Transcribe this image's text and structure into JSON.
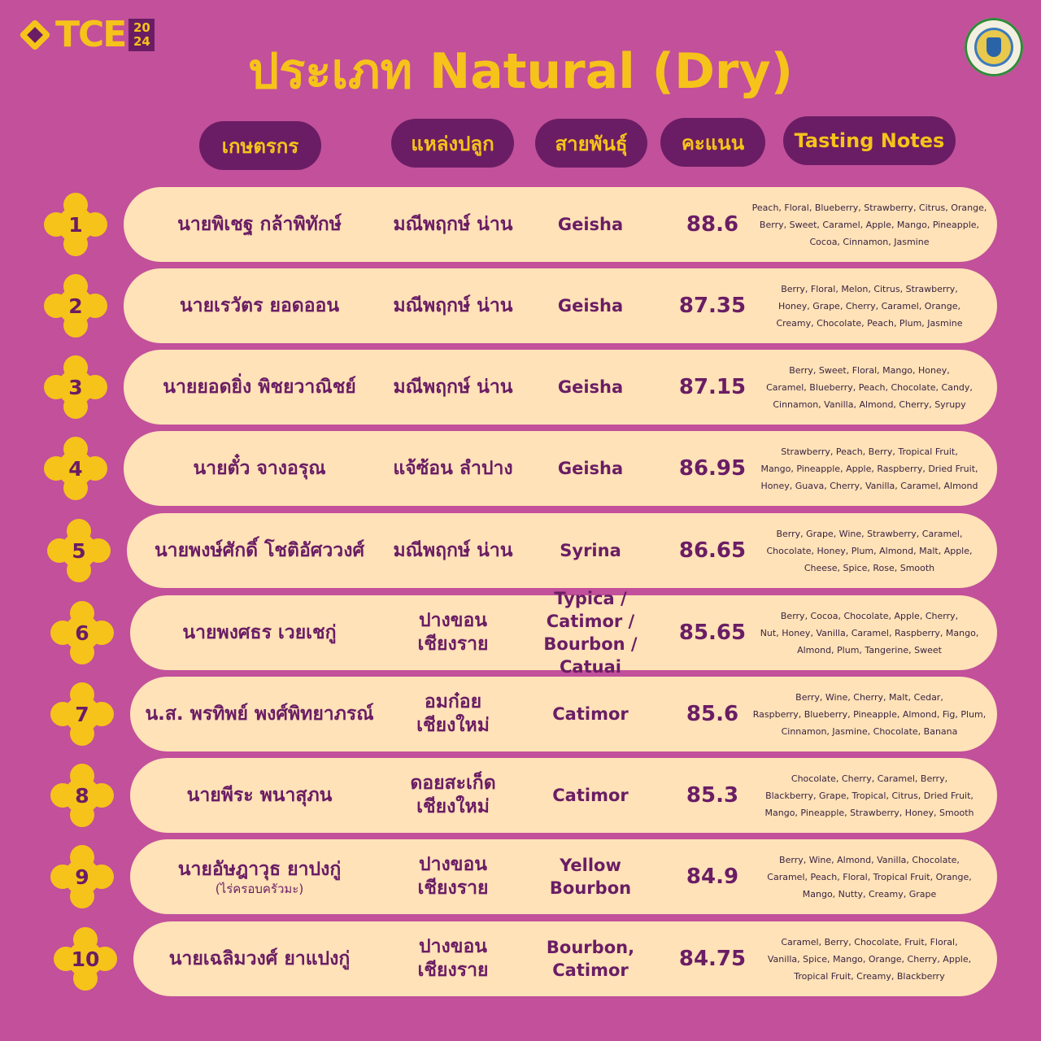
{
  "brand": {
    "logo_text": "TCE",
    "year_top": "20",
    "year_bottom": "24"
  },
  "title": "ประเภท Natural (Dry)",
  "headers": {
    "farmer": "เกษตรกร",
    "origin": "แหล่งปลูก",
    "variety": "สายพันธุ์",
    "score": "คะแนน",
    "notes": "Tasting Notes"
  },
  "colors": {
    "background": "#c2509a",
    "accent": "#f6c31a",
    "header_bg": "#6a1d64",
    "row_bg": "#ffe2b8",
    "text": "#6a1d64"
  },
  "rows": [
    {
      "rank": "1",
      "farmer": "นายพิเชฐ กล้าพิทักษ์",
      "farmer_sub": "",
      "origin_1": "มณีพฤกษ์ น่าน",
      "origin_2": "",
      "variety_1": "Geisha",
      "variety_2": "",
      "score": "88.6",
      "notes_1": "Peach, Floral, Blueberry, Strawberry, Citrus, Orange,",
      "notes_2": "Berry, Sweet, Caramel, Apple, Mango, Pineapple,",
      "notes_3": "Cocoa, Cinnamon, Jasmine"
    },
    {
      "rank": "2",
      "farmer": "นายเรวัตร ยอดออน",
      "farmer_sub": "",
      "origin_1": "มณีพฤกษ์ น่าน",
      "origin_2": "",
      "variety_1": "Geisha",
      "variety_2": "",
      "score": "87.35",
      "notes_1": "Berry, Floral, Melon, Citrus, Strawberry,",
      "notes_2": "Honey, Grape, Cherry, Caramel, Orange,",
      "notes_3": "Creamy, Chocolate, Peach, Plum, Jasmine"
    },
    {
      "rank": "3",
      "farmer": "นายยอดยิ่ง พิชยวาณิชย์",
      "farmer_sub": "",
      "origin_1": "มณีพฤกษ์ น่าน",
      "origin_2": "",
      "variety_1": "Geisha",
      "variety_2": "",
      "score": "87.15",
      "notes_1": "Berry, Sweet, Floral, Mango, Honey,",
      "notes_2": "Caramel, Blueberry, Peach, Chocolate, Candy,",
      "notes_3": "Cinnamon, Vanilla, Almond, Cherry, Syrupy"
    },
    {
      "rank": "4",
      "farmer": "นายตั๋ว จางอรุณ",
      "farmer_sub": "",
      "origin_1": "แจ้ซ้อน ลำปาง",
      "origin_2": "",
      "variety_1": "Geisha",
      "variety_2": "",
      "score": "86.95",
      "notes_1": "Strawberry, Peach, Berry, Tropical Fruit,",
      "notes_2": "Mango, Pineapple, Apple, Raspberry, Dried Fruit,",
      "notes_3": "Honey, Guava, Cherry, Vanilla, Caramel, Almond"
    },
    {
      "rank": "5",
      "farmer": "นายพงษ์ศักดิ์ โชติอัศววงศ์",
      "farmer_sub": "",
      "origin_1": "มณีพฤกษ์ น่าน",
      "origin_2": "",
      "variety_1": "Syrina",
      "variety_2": "",
      "score": "86.65",
      "notes_1": "Berry, Grape, Wine, Strawberry, Caramel,",
      "notes_2": "Chocolate, Honey, Plum, Almond, Malt, Apple,",
      "notes_3": "Cheese, Spice, Rose, Smooth"
    },
    {
      "rank": "6",
      "farmer": "นายพงศธร เวยเชกู่",
      "farmer_sub": "",
      "origin_1": "ปางขอน",
      "origin_2": "เชียงราย",
      "variety_1": "Typica / Catimor /",
      "variety_2": "Bourbon / Catuai",
      "score": "85.65",
      "notes_1": "Berry, Cocoa, Chocolate, Apple, Cherry,",
      "notes_2": "Nut, Honey, Vanilla, Caramel, Raspberry, Mango,",
      "notes_3": "Almond, Plum, Tangerine, Sweet"
    },
    {
      "rank": "7",
      "farmer": "น.ส. พรทิพย์ พงศ์พิทยาภรณ์",
      "farmer_sub": "",
      "origin_1": "อมก๋อย",
      "origin_2": "เชียงใหม่",
      "variety_1": "Catimor",
      "variety_2": "",
      "score": "85.6",
      "notes_1": "Berry, Wine, Cherry, Malt, Cedar,",
      "notes_2": "Raspberry, Blueberry, Pineapple, Almond, Fig, Plum,",
      "notes_3": "Cinnamon, Jasmine, Chocolate, Banana"
    },
    {
      "rank": "8",
      "farmer": "นายพีระ พนาสุภน",
      "farmer_sub": "",
      "origin_1": "ดอยสะเก็ด",
      "origin_2": "เชียงใหม่",
      "variety_1": "Catimor",
      "variety_2": "",
      "score": "85.3",
      "notes_1": "Chocolate, Cherry, Caramel, Berry,",
      "notes_2": "Blackberry, Grape, Tropical, Citrus, Dried Fruit,",
      "notes_3": "Mango, Pineapple, Strawberry, Honey, Smooth"
    },
    {
      "rank": "9",
      "farmer": "นายอัษฎาวุธ ยาปงกู่",
      "farmer_sub": "(ไร่ครอบครัวมะ)",
      "origin_1": "ปางขอน",
      "origin_2": "เชียงราย",
      "variety_1": "Yellow Bourbon",
      "variety_2": "",
      "score": "84.9",
      "notes_1": "Berry, Wine, Almond, Vanilla, Chocolate,",
      "notes_2": "Caramel, Peach, Floral, Tropical Fruit, Orange,",
      "notes_3": "Mango, Nutty, Creamy, Grape"
    },
    {
      "rank": "10",
      "farmer": "นายเฉลิมวงศ์ ยาแปงกู่",
      "farmer_sub": "",
      "origin_1": "ปางขอน",
      "origin_2": "เชียงราย",
      "variety_1": "Bourbon,",
      "variety_2": "Catimor",
      "score": "84.75",
      "notes_1": "Caramel, Berry, Chocolate, Fruit, Floral,",
      "notes_2": "Vanilla, Spice, Mango, Orange, Cherry, Apple,",
      "notes_3": "Tropical Fruit, Creamy, Blackberry"
    }
  ]
}
